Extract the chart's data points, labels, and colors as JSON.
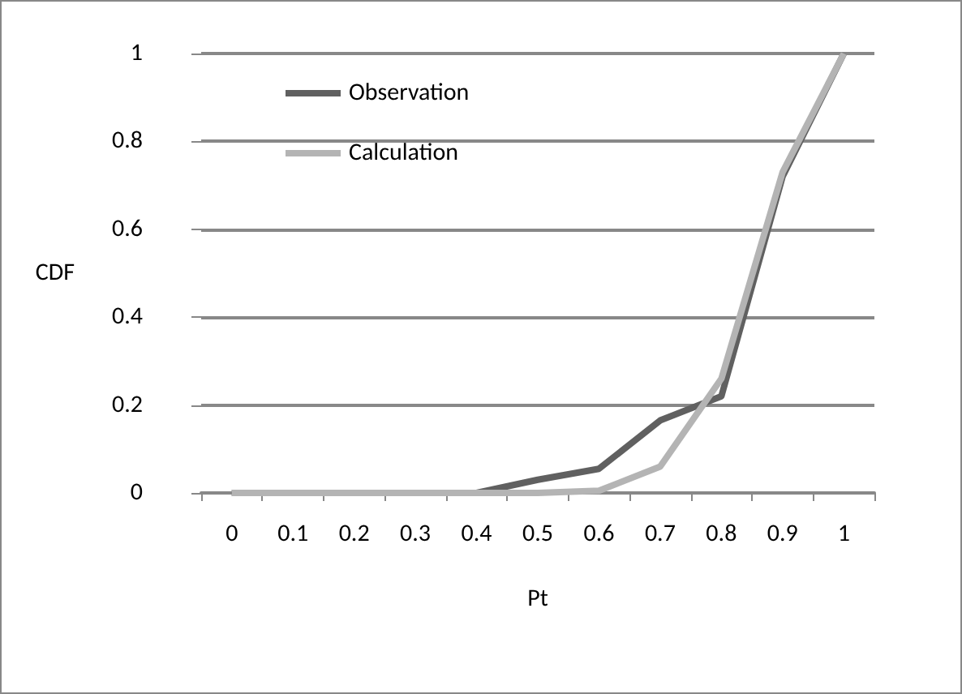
{
  "chart_data": {
    "type": "line",
    "xlabel": "Pt",
    "ylabel": "CDF",
    "categories": [
      "0",
      "0.1",
      "0.2",
      "0.3",
      "0.4",
      "0.5",
      "0.6",
      "0.7",
      "0.8",
      "0.9",
      "1"
    ],
    "series": [
      {
        "name": "Observation",
        "color": "#606060",
        "values": [
          0,
          0,
          0,
          0,
          0,
          0.03,
          0.055,
          0.165,
          0.22,
          0.72,
          1
        ]
      },
      {
        "name": "Calculation",
        "color": "#b4b4b4",
        "values": [
          0,
          0,
          0,
          0,
          0,
          0,
          0.005,
          0.06,
          0.26,
          0.73,
          1
        ]
      }
    ],
    "ylim": [
      0,
      1
    ],
    "yticks": [
      0,
      0.2,
      0.4,
      0.6,
      0.8,
      1
    ],
    "grid": "y",
    "legend": "top left",
    "marker": "none",
    "line_style": "solid"
  }
}
